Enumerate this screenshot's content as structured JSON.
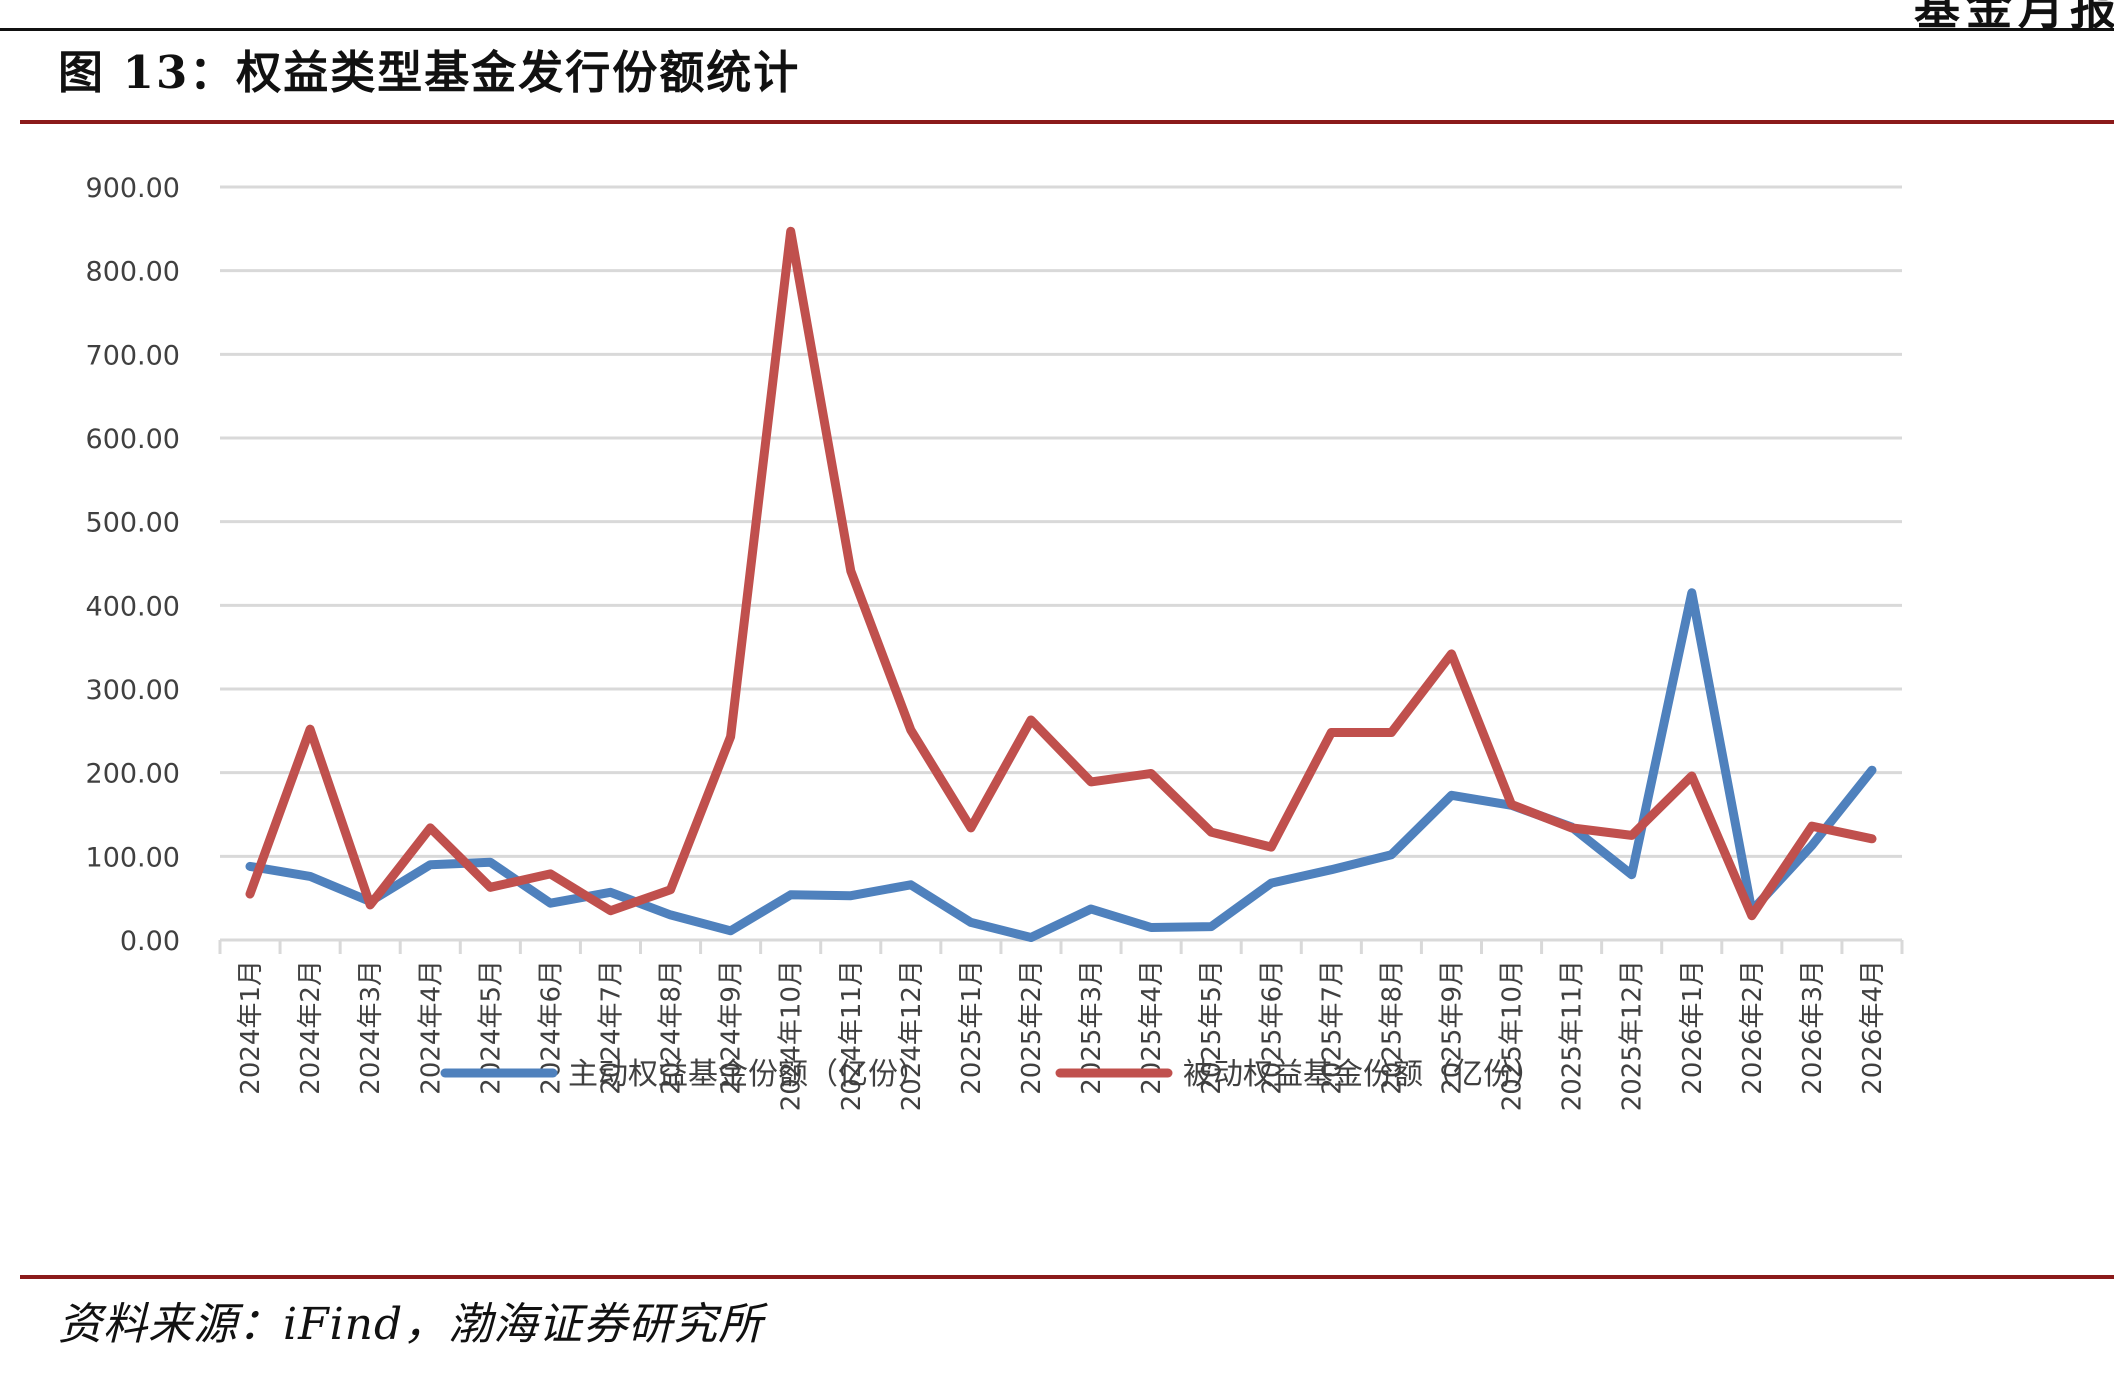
{
  "header": {
    "corner_text": "基金月报",
    "figure_title": "图 13：权益类型基金发行份额统计"
  },
  "footer": {
    "source": "资料来源：iFind，渤海证券研究所"
  },
  "colors": {
    "active": "#4f81bd",
    "passive": "#c0504d",
    "brand_rule": "#8b1a1a",
    "grid": "#d9d9d9"
  },
  "chart_data": {
    "type": "line",
    "title": "",
    "xlabel": "",
    "ylabel": "",
    "ylim": [
      0,
      900
    ],
    "yticks": [
      "0.00",
      "100.00",
      "200.00",
      "300.00",
      "400.00",
      "500.00",
      "600.00",
      "700.00",
      "800.00",
      "900.00"
    ],
    "grid": true,
    "legend_position": "bottom",
    "categories": [
      "2024年1月",
      "2024年2月",
      "2024年3月",
      "2024年4月",
      "2024年5月",
      "2024年6月",
      "2024年7月",
      "2024年8月",
      "2024年9月",
      "2024年10月",
      "2024年11月",
      "2024年12月",
      "2025年1月",
      "2025年2月",
      "2025年3月",
      "2025年4月",
      "2025年5月",
      "2025年6月",
      "2025年7月",
      "2025年8月",
      "2025年9月",
      "2025年10月",
      "2025年11月",
      "2025年12月",
      "2026年1月",
      "2026年2月",
      "2026年3月",
      "2026年4月"
    ],
    "series": [
      {
        "name": "主动权益基金份额（亿份）",
        "color": "#4f81bd",
        "values": [
          88,
          76,
          46,
          90,
          93,
          44,
          57,
          30,
          11,
          54,
          53,
          66,
          21,
          3,
          37,
          15,
          16,
          68,
          84,
          102,
          173,
          161,
          135,
          78,
          415,
          35,
          113,
          203
        ]
      },
      {
        "name": "被动权益基金份额（亿份）",
        "color": "#c0504d",
        "values": [
          55,
          252,
          42,
          134,
          63,
          79,
          35,
          60,
          243,
          847,
          441,
          251,
          134,
          263,
          189,
          199,
          129,
          111,
          248,
          248,
          342,
          162,
          134,
          125,
          196,
          29,
          136,
          121
        ]
      }
    ]
  }
}
